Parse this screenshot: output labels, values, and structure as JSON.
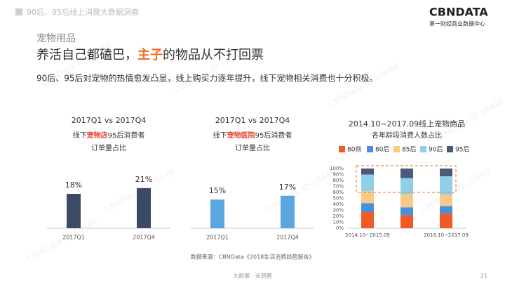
{
  "header": {
    "section": "90后、95后线上消费大数据洞察",
    "logo": "CBNDATA",
    "logo_sub": "第一财经商业数据中心",
    "kicker": "宠物用品",
    "title_parts": [
      "养活自己都磕巴，",
      "主子",
      "的物品从不打回票"
    ],
    "body": "90后、95后对宠物的热情愈发凸显，线上购买力逐年提升，线下宠物相关消费也十分积极。"
  },
  "watermark": "CBNData ID:16446",
  "chart_data": [
    {
      "type": "bar",
      "title": "2017Q1 vs 2017Q4",
      "subtitle_parts": [
        "线下",
        "宠物店",
        "95后消费者"
      ],
      "subtitle2": "订单量占比",
      "categories": [
        "2017Q1",
        "2017Q4"
      ],
      "values": [
        18,
        21
      ],
      "value_labels": [
        "18%",
        "21%"
      ],
      "color": "#3d4a63"
    },
    {
      "type": "bar",
      "title": "2017Q1 vs 2017Q4",
      "subtitle_parts": [
        "线下",
        "宠物医院",
        "95后消费者"
      ],
      "subtitle2": "订单量占比",
      "categories": [
        "2017Q1",
        "2017Q4"
      ],
      "values": [
        15,
        17
      ],
      "value_labels": [
        "15%",
        "17%"
      ],
      "color": "#5aa6e0"
    },
    {
      "type": "stacked_bar",
      "title": "2014.10~2017.09线上宠物商品",
      "subtitle": "各年龄段消费人数占比",
      "categories": [
        "2014.10~2015.09",
        null,
        "2016.10~2017.09"
      ],
      "series": [
        {
          "name": "80前",
          "color": "#f05a24",
          "values": [
            27,
            22,
            24
          ]
        },
        {
          "name": "80后",
          "color": "#4a90d9",
          "values": [
            15,
            13,
            13
          ]
        },
        {
          "name": "85后",
          "color": "#f9c98a",
          "values": [
            20,
            22,
            19
          ]
        },
        {
          "name": "90后",
          "color": "#8fd0e8",
          "values": [
            28,
            27,
            31
          ]
        },
        {
          "name": "95后",
          "color": "#4a5a78",
          "values": [
            10,
            16,
            13
          ]
        }
      ],
      "ylim": [
        0,
        100
      ],
      "yticks": [
        {
          "value": 0,
          "label": "0%"
        },
        {
          "value": 10,
          "label": "10%"
        },
        {
          "value": 20,
          "label": "20%"
        },
        {
          "value": 30,
          "label": "30%"
        },
        {
          "value": 40,
          "label": "40%"
        },
        {
          "value": 50,
          "label": "50%"
        },
        {
          "value": 60,
          "label": "60%"
        },
        {
          "value": 70,
          "label": "70%"
        },
        {
          "value": 80,
          "label": "80%"
        },
        {
          "value": 90,
          "label": "90%"
        },
        {
          "value": 100,
          "label": "100%"
        }
      ]
    }
  ],
  "footer": {
    "source": "数据来源：CBNData《2018生活消费趋势报告》",
    "tagline": "大数据 · 全洞察",
    "page": "21"
  }
}
